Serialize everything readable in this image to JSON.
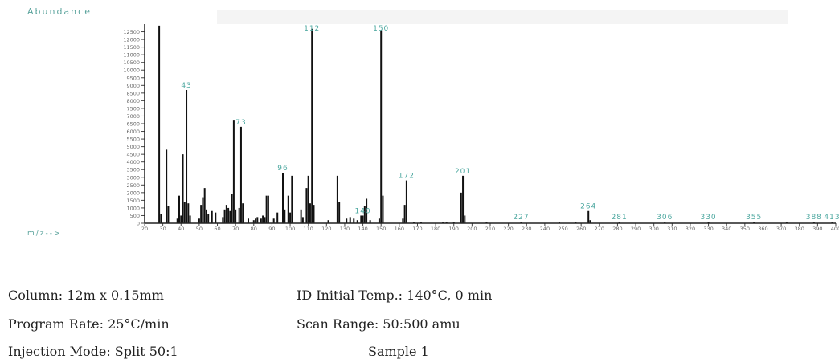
{
  "chart_data": {
    "type": "bar",
    "title": "",
    "ylabel": "Abundance",
    "xlabel": "m/z-->",
    "xlim": [
      20,
      400
    ],
    "ylim": [
      0,
      13000
    ],
    "y_ticks": [
      0,
      500,
      1000,
      1500,
      2000,
      2500,
      3000,
      3500,
      4000,
      4500,
      5000,
      5500,
      6000,
      6500,
      7000,
      7500,
      8000,
      8500,
      9000,
      9500,
      10000,
      10500,
      11000,
      11500,
      12000,
      12500
    ],
    "x_ticks": [
      20,
      30,
      40,
      50,
      60,
      70,
      80,
      90,
      100,
      110,
      120,
      130,
      140,
      150,
      160,
      170,
      180,
      190,
      200,
      210,
      220,
      230,
      240,
      250,
      260,
      270,
      280,
      290,
      300,
      310,
      320,
      330,
      340,
      350,
      360,
      370,
      380,
      390,
      400
    ],
    "peaks": [
      {
        "mz": 28,
        "abundance": 12900
      },
      {
        "mz": 29,
        "abundance": 600
      },
      {
        "mz": 32,
        "abundance": 4800
      },
      {
        "mz": 33,
        "abundance": 1100
      },
      {
        "mz": 38,
        "abundance": 300
      },
      {
        "mz": 39,
        "abundance": 1800
      },
      {
        "mz": 40,
        "abundance": 500
      },
      {
        "mz": 41,
        "abundance": 4500
      },
      {
        "mz": 42,
        "abundance": 1400
      },
      {
        "mz": 43,
        "abundance": 8700
      },
      {
        "mz": 44,
        "abundance": 1300
      },
      {
        "mz": 45,
        "abundance": 500
      },
      {
        "mz": 50,
        "abundance": 300
      },
      {
        "mz": 51,
        "abundance": 1200
      },
      {
        "mz": 52,
        "abundance": 1700
      },
      {
        "mz": 53,
        "abundance": 2300
      },
      {
        "mz": 54,
        "abundance": 900
      },
      {
        "mz": 55,
        "abundance": 600
      },
      {
        "mz": 57,
        "abundance": 800
      },
      {
        "mz": 59,
        "abundance": 700
      },
      {
        "mz": 63,
        "abundance": 400
      },
      {
        "mz": 64,
        "abundance": 900
      },
      {
        "mz": 65,
        "abundance": 1200
      },
      {
        "mz": 66,
        "abundance": 1000
      },
      {
        "mz": 67,
        "abundance": 800
      },
      {
        "mz": 68,
        "abundance": 1900
      },
      {
        "mz": 69,
        "abundance": 6700
      },
      {
        "mz": 70,
        "abundance": 900
      },
      {
        "mz": 72,
        "abundance": 1000
      },
      {
        "mz": 73,
        "abundance": 6300
      },
      {
        "mz": 74,
        "abundance": 1300
      },
      {
        "mz": 77,
        "abundance": 300
      },
      {
        "mz": 80,
        "abundance": 200
      },
      {
        "mz": 81,
        "abundance": 300
      },
      {
        "mz": 82,
        "abundance": 400
      },
      {
        "mz": 84,
        "abundance": 300
      },
      {
        "mz": 85,
        "abundance": 500
      },
      {
        "mz": 86,
        "abundance": 400
      },
      {
        "mz": 87,
        "abundance": 1800
      },
      {
        "mz": 88,
        "abundance": 1800
      },
      {
        "mz": 91,
        "abundance": 300
      },
      {
        "mz": 93,
        "abundance": 700
      },
      {
        "mz": 96,
        "abundance": 3300
      },
      {
        "mz": 97,
        "abundance": 900
      },
      {
        "mz": 99,
        "abundance": 1800
      },
      {
        "mz": 100,
        "abundance": 700
      },
      {
        "mz": 101,
        "abundance": 3100
      },
      {
        "mz": 106,
        "abundance": 900
      },
      {
        "mz": 107,
        "abundance": 400
      },
      {
        "mz": 109,
        "abundance": 2300
      },
      {
        "mz": 110,
        "abundance": 3100
      },
      {
        "mz": 111,
        "abundance": 1300
      },
      {
        "mz": 112,
        "abundance": 12700
      },
      {
        "mz": 113,
        "abundance": 1200
      },
      {
        "mz": 121,
        "abundance": 200
      },
      {
        "mz": 126,
        "abundance": 3100
      },
      {
        "mz": 127,
        "abundance": 1400
      },
      {
        "mz": 131,
        "abundance": 300
      },
      {
        "mz": 133,
        "abundance": 400
      },
      {
        "mz": 135,
        "abundance": 300
      },
      {
        "mz": 137,
        "abundance": 200
      },
      {
        "mz": 139,
        "abundance": 500
      },
      {
        "mz": 140,
        "abundance": 500
      },
      {
        "mz": 141,
        "abundance": 1100
      },
      {
        "mz": 142,
        "abundance": 1600
      },
      {
        "mz": 144,
        "abundance": 200
      },
      {
        "mz": 149,
        "abundance": 300
      },
      {
        "mz": 150,
        "abundance": 12600
      },
      {
        "mz": 151,
        "abundance": 1800
      },
      {
        "mz": 162,
        "abundance": 300
      },
      {
        "mz": 163,
        "abundance": 1200
      },
      {
        "mz": 164,
        "abundance": 2800
      },
      {
        "mz": 168,
        "abundance": 100
      },
      {
        "mz": 172,
        "abundance": 100
      },
      {
        "mz": 184,
        "abundance": 100
      },
      {
        "mz": 186,
        "abundance": 100
      },
      {
        "mz": 190,
        "abundance": 100
      },
      {
        "mz": 194,
        "abundance": 2000
      },
      {
        "mz": 195,
        "abundance": 3100
      },
      {
        "mz": 196,
        "abundance": 500
      },
      {
        "mz": 208,
        "abundance": 100
      },
      {
        "mz": 227,
        "abundance": 100
      },
      {
        "mz": 248,
        "abundance": 100
      },
      {
        "mz": 257,
        "abundance": 100
      },
      {
        "mz": 264,
        "abundance": 800
      },
      {
        "mz": 265,
        "abundance": 200
      },
      {
        "mz": 281,
        "abundance": 100
      },
      {
        "mz": 306,
        "abundance": 100
      },
      {
        "mz": 330,
        "abundance": 100
      },
      {
        "mz": 355,
        "abundance": 100
      },
      {
        "mz": 373,
        "abundance": 100
      },
      {
        "mz": 388,
        "abundance": 100
      },
      {
        "mz": 398,
        "abundance": 100
      }
    ],
    "peak_labels": [
      {
        "label": "43",
        "mz": 43
      },
      {
        "label": "73",
        "mz": 73
      },
      {
        "label": "96",
        "mz": 96
      },
      {
        "label": "112",
        "mz": 112
      },
      {
        "label": "150",
        "mz": 150
      },
      {
        "label": "140",
        "mz": 140
      },
      {
        "label": "172",
        "mz": 164
      },
      {
        "label": "201",
        "mz": 195
      },
      {
        "label": "264",
        "mz": 264
      },
      {
        "label": "227",
        "mz": 227
      },
      {
        "label": "281",
        "mz": 281
      },
      {
        "label": "306",
        "mz": 306
      },
      {
        "label": "330",
        "mz": 330
      },
      {
        "label": "355",
        "mz": 355
      },
      {
        "label": "388",
        "mz": 388
      },
      {
        "label": "413",
        "mz": 398
      }
    ],
    "colors": {
      "peaks": "#111111",
      "labels": "#4da8a0",
      "axes": "#222222",
      "ticks": "#666666"
    }
  },
  "info": {
    "column": "Column: 12m x 0.15mm",
    "id_temp": "ID Initial Temp.: 140°C, 0 min",
    "program_rate": "Program Rate: 25°C/min",
    "scan_range": "Scan Range: 50:500 amu",
    "injection_mode": "Injection Mode: Split 50:1",
    "sample": "Sample 1"
  }
}
